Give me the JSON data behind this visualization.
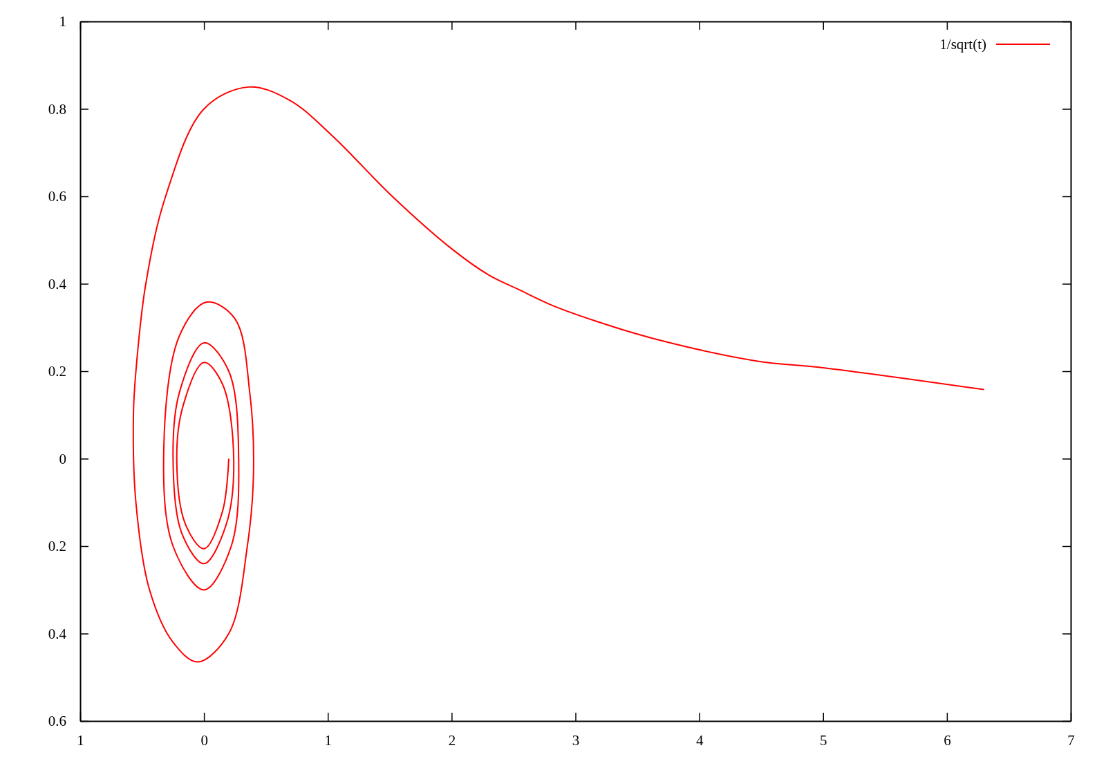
{
  "chart_data": {
    "type": "line",
    "xlim": [
      -1,
      7
    ],
    "ylim": [
      -0.6,
      1
    ],
    "xticks": [
      {
        "value": -1,
        "label": "1"
      },
      0,
      1,
      2,
      3,
      4,
      5,
      6,
      7
    ],
    "yticks": [
      {
        "value": -0.6,
        "label": "0.6"
      },
      {
        "value": -0.4,
        "label": "0.4"
      },
      {
        "value": -0.2,
        "label": "0.2"
      },
      0,
      0.2,
      0.4,
      0.6,
      0.8,
      1
    ],
    "grid": false,
    "legend": "top right",
    "marker": "none",
    "line_style": "solid",
    "series": [
      {
        "name": "1/sqrt(t)",
        "color": "#ff0000",
        "x": [
          6.3,
          5.0,
          4.47,
          3.64,
          3.16,
          2.8,
          2.54,
          2.3,
          2.0,
          1.52,
          1.03,
          0.69,
          0.36,
          0,
          -0.31,
          -0.47,
          -0.55,
          -0.57,
          -0.55,
          -0.44,
          -0.25,
          -0.05,
          0.2,
          0.35,
          0.4,
          0.37,
          0.25,
          0.02,
          -0.2,
          -0.325,
          -0.25,
          0,
          0.22,
          0.28,
          0.2,
          0,
          -0.2,
          -0.25,
          -0.18,
          0,
          0.18,
          0.24,
          0.15,
          0,
          -0.17,
          -0.22,
          -0.15,
          0,
          0.15,
          0.2
        ],
        "values": [
          0.158,
          0.208,
          0.223,
          0.274,
          0.315,
          0.352,
          0.387,
          0.42,
          0.48,
          0.6,
          0.74,
          0.82,
          0.85,
          0.8,
          0.6,
          0.4,
          0.2,
          0.1,
          -0.1,
          -0.3,
          -0.42,
          -0.465,
          -0.4,
          -0.2,
          -0.03,
          0.15,
          0.32,
          0.358,
          0.28,
          0.02,
          -0.2,
          -0.3,
          -0.2,
          0,
          0.2,
          0.265,
          0.15,
          0,
          -0.17,
          -0.24,
          -0.15,
          0,
          0.17,
          0.22,
          0.12,
          0,
          -0.15,
          -0.206,
          -0.12,
          0
        ]
      }
    ]
  }
}
